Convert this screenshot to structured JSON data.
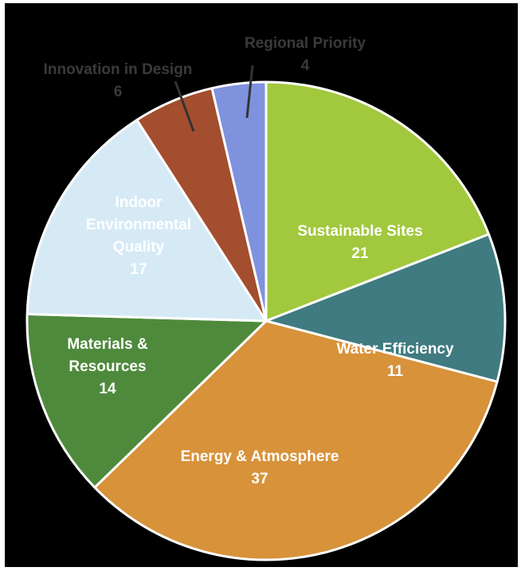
{
  "chart_data": {
    "type": "pie",
    "title": "",
    "start_angle_deg": 0,
    "direction": "clockwise",
    "slices": [
      {
        "label": "Sustainable Sites",
        "value": 21,
        "value_label": "21",
        "color": "#A2C83E",
        "text_color": "#ffffff"
      },
      {
        "label": "Water Efficiency",
        "value": 11,
        "value_label": "11",
        "color": "#3F7B80",
        "text_color": "#ffffff"
      },
      {
        "label": "Energy & Atmosphere",
        "value": 37,
        "value_label": "37",
        "color": "#D7923A",
        "text_color": "#ffffff"
      },
      {
        "label": "Materials & Resources",
        "value": 14,
        "value_label": "14",
        "color": "#4F8A3C",
        "text_color": "#ffffff"
      },
      {
        "label": "Indoor Environmental Quality",
        "value": 17,
        "value_label": "17",
        "color": "#D6EAF6",
        "text_color": "#ffffff"
      },
      {
        "label": "Innovation in Design",
        "value": 6,
        "value_label": "6",
        "color": "#A34E2E",
        "text_color": "#3a3a3a"
      },
      {
        "label": "Regional Priority",
        "value": 4,
        "value_label": "4",
        "color": "#7F92DD",
        "text_color": "#3a3a3a"
      }
    ]
  }
}
